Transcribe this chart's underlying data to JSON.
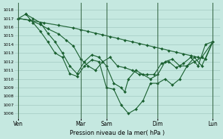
{
  "background_color": "#c5e8e0",
  "grid_color": "#a0c8c0",
  "line_color": "#1a6030",
  "ylabel": "Pression niveau de la mer( hPa )",
  "ylim": [
    1005.5,
    1018.8
  ],
  "yticks": [
    1006,
    1007,
    1008,
    1009,
    1010,
    1011,
    1012,
    1013,
    1014,
    1015,
    1016,
    1017,
    1018
  ],
  "xlim": [
    0,
    28
  ],
  "day_labels": [
    "Ven",
    "Mar",
    "Sam",
    "Dim",
    "Lun"
  ],
  "day_positions": [
    0.5,
    9.0,
    12.5,
    19.5,
    27.0
  ],
  "vline_positions": [
    0.5,
    9.0,
    12.5,
    19.5,
    27.0
  ],
  "series": [
    {
      "x": [
        0.5,
        2,
        4,
        6,
        8,
        9,
        10,
        11,
        12,
        13,
        14,
        15,
        16,
        17,
        18,
        19,
        20,
        21,
        22,
        23,
        24,
        25,
        26,
        27
      ],
      "y": [
        1017.0,
        1016.8,
        1016.5,
        1016.2,
        1015.9,
        1015.7,
        1015.5,
        1015.3,
        1015.1,
        1014.9,
        1014.7,
        1014.5,
        1014.3,
        1014.1,
        1013.9,
        1013.7,
        1013.5,
        1013.3,
        1013.1,
        1012.9,
        1012.7,
        1012.5,
        1012.3,
        1014.3
      ]
    },
    {
      "x": [
        0.5,
        2,
        3.5,
        4.5,
        6,
        7,
        8,
        9,
        10,
        11,
        12,
        13,
        14,
        15,
        16,
        17,
        18,
        19,
        20,
        21,
        22,
        23,
        24,
        25,
        26,
        27
      ],
      "y": [
        1017.0,
        1016.8,
        1016.3,
        1015.8,
        1015.2,
        1014.5,
        1013.8,
        1012.3,
        1011.5,
        1011.0,
        1012.0,
        1012.5,
        1011.5,
        1011.3,
        1011.0,
        1010.5,
        1010.5,
        1010.5,
        1011.8,
        1012.0,
        1011.3,
        1011.8,
        1012.5,
        1011.5,
        1014.0,
        1014.3
      ]
    },
    {
      "x": [
        0.5,
        1.5,
        2.5,
        3.5,
        4.5,
        5.5,
        6.5,
        7.5,
        8.5,
        9.5,
        10.5,
        11.5,
        12.5,
        13.5,
        14.5,
        15.5,
        16.5,
        17.5,
        18.5,
        19.5,
        20.5,
        21.5,
        22.5,
        23.5,
        24.5,
        25.5,
        27
      ],
      "y": [
        1017.0,
        1017.5,
        1016.5,
        1015.5,
        1014.3,
        1013.0,
        1012.5,
        1010.6,
        1010.3,
        1011.5,
        1012.2,
        1012.0,
        1009.0,
        1008.8,
        1007.0,
        1006.0,
        1006.5,
        1007.5,
        1009.5,
        1009.5,
        1010.0,
        1009.3,
        1010.0,
        1011.5,
        1012.0,
        1012.5,
        1014.3
      ]
    },
    {
      "x": [
        1.5,
        2.5,
        3.5,
        4.5,
        5.5,
        6.5,
        7.5,
        8.5,
        9.5,
        10.5,
        11.5,
        12.5,
        13.5,
        14.5,
        15.0,
        15.5,
        16.5,
        17.5,
        18.5,
        19.5,
        20.5,
        21.5,
        22.5,
        23.5,
        24.5,
        25.5,
        27
      ],
      "y": [
        1017.5,
        1017.0,
        1016.5,
        1015.3,
        1014.3,
        1013.0,
        1011.5,
        1010.6,
        1012.0,
        1012.8,
        1012.5,
        1011.5,
        1009.5,
        1009.0,
        1008.5,
        1010.0,
        1011.0,
        1010.5,
        1010.0,
        1010.5,
        1012.0,
        1012.3,
        1011.5,
        1011.5,
        1012.5,
        1011.5,
        1014.3
      ]
    }
  ]
}
